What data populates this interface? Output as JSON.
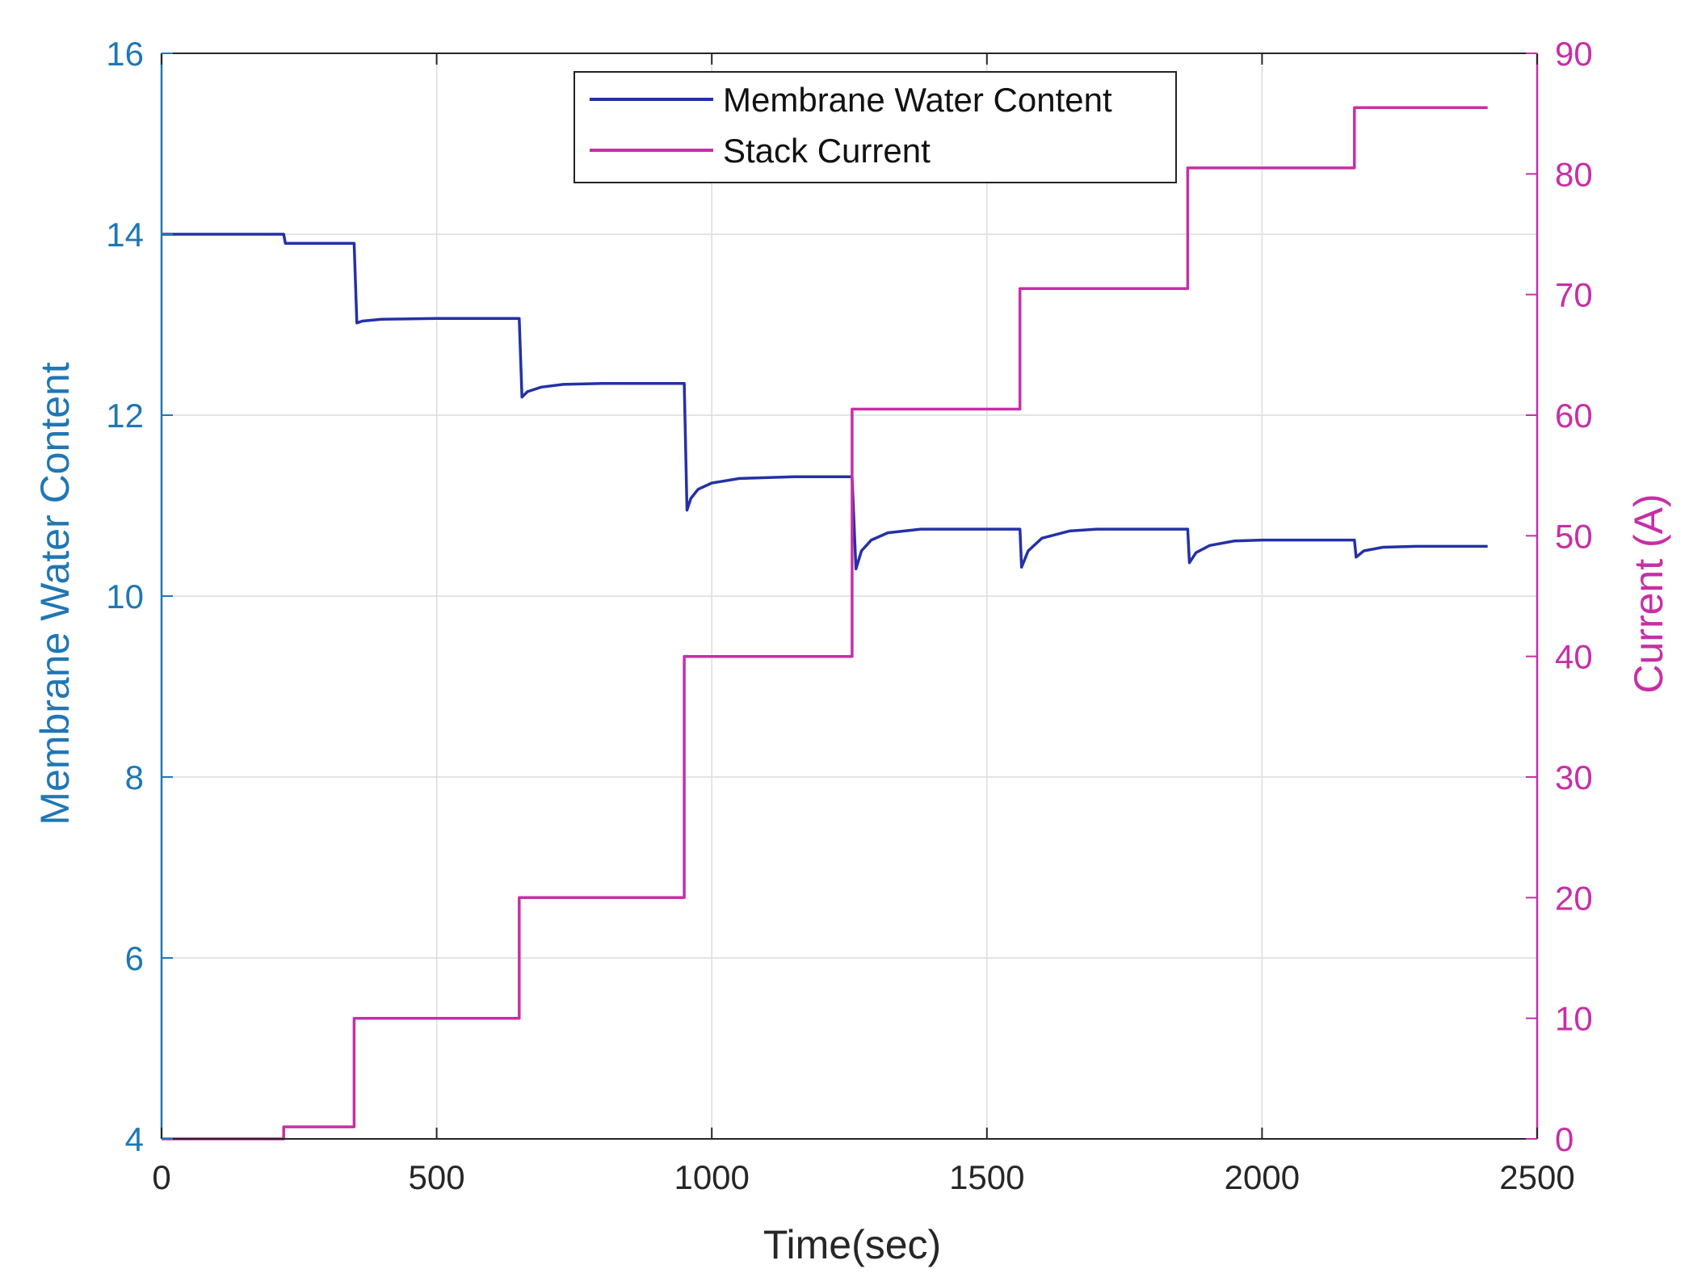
{
  "chart_data": {
    "type": "line",
    "xlabel": "Time(sec)",
    "ylabel_left": "Membrane Water Content",
    "ylabel_right": "Current (A)",
    "xlim": [
      0,
      2500
    ],
    "ylim_left": [
      4,
      16
    ],
    "ylim_right": [
      0,
      90
    ],
    "x_ticks": [
      0,
      500,
      1000,
      1500,
      2000,
      2500
    ],
    "y_left_ticks": [
      4,
      6,
      8,
      10,
      12,
      14,
      16
    ],
    "y_right_ticks": [
      0,
      10,
      20,
      30,
      40,
      50,
      60,
      70,
      80,
      90
    ],
    "grid": true,
    "legend_position": "top-center",
    "colors": {
      "left_axis": "#1f77b4",
      "right_axis": "#c72fa6",
      "membrane": "#2431a6",
      "current": "#c72fa6",
      "grid": "#dcdcdc"
    },
    "series": [
      {
        "name": "Membrane Water Content",
        "axis": "left",
        "points": [
          [
            0,
            14.0
          ],
          [
            222,
            14.0
          ],
          [
            225,
            13.9
          ],
          [
            350,
            13.9
          ],
          [
            355,
            13.02
          ],
          [
            365,
            13.04
          ],
          [
            400,
            13.06
          ],
          [
            500,
            13.07
          ],
          [
            650,
            13.07
          ],
          [
            655,
            12.2
          ],
          [
            665,
            12.26
          ],
          [
            690,
            12.31
          ],
          [
            730,
            12.34
          ],
          [
            800,
            12.35
          ],
          [
            950,
            12.35
          ],
          [
            955,
            10.95
          ],
          [
            962,
            11.08
          ],
          [
            975,
            11.18
          ],
          [
            1000,
            11.25
          ],
          [
            1050,
            11.3
          ],
          [
            1150,
            11.32
          ],
          [
            1255,
            11.32
          ],
          [
            1262,
            10.3
          ],
          [
            1272,
            10.5
          ],
          [
            1290,
            10.62
          ],
          [
            1320,
            10.7
          ],
          [
            1380,
            10.74
          ],
          [
            1560,
            10.74
          ],
          [
            1563,
            10.32
          ],
          [
            1575,
            10.5
          ],
          [
            1600,
            10.64
          ],
          [
            1650,
            10.72
          ],
          [
            1700,
            10.74
          ],
          [
            1865,
            10.74
          ],
          [
            1868,
            10.37
          ],
          [
            1880,
            10.48
          ],
          [
            1905,
            10.56
          ],
          [
            1950,
            10.61
          ],
          [
            2000,
            10.62
          ],
          [
            2168,
            10.62
          ],
          [
            2171,
            10.43
          ],
          [
            2185,
            10.5
          ],
          [
            2220,
            10.54
          ],
          [
            2280,
            10.55
          ],
          [
            2410,
            10.55
          ]
        ]
      },
      {
        "name": "Stack Current",
        "axis": "right",
        "points": [
          [
            0,
            0
          ],
          [
            222,
            0
          ],
          [
            222,
            1
          ],
          [
            350,
            1
          ],
          [
            350,
            10
          ],
          [
            650,
            10
          ],
          [
            650,
            20
          ],
          [
            950,
            20
          ],
          [
            950,
            40
          ],
          [
            1255,
            40
          ],
          [
            1255,
            60.5
          ],
          [
            1560,
            60.5
          ],
          [
            1560,
            70.5
          ],
          [
            1865,
            70.5
          ],
          [
            1865,
            80.5
          ],
          [
            2168,
            80.5
          ],
          [
            2168,
            85.5
          ],
          [
            2410,
            85.5
          ]
        ]
      }
    ]
  }
}
